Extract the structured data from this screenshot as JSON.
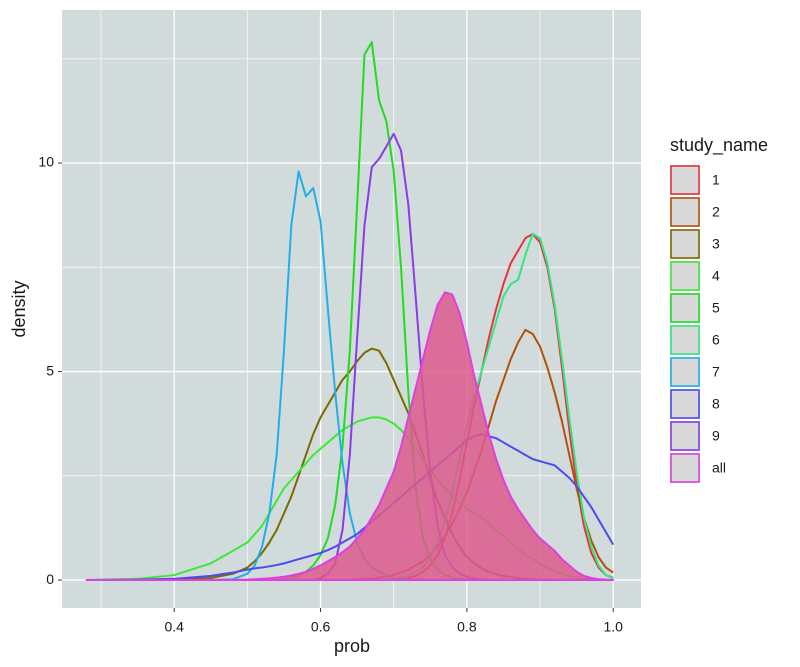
{
  "chart_data": {
    "type": "line",
    "x_label": "prob",
    "y_label": "density",
    "legend_title": "study_name",
    "legend_position": "right",
    "grid": true,
    "background": "#d2dbdb",
    "xlim": [
      0.2466,
      1.038
    ],
    "ylim": [
      -0.67,
      13.67
    ],
    "xticks": [
      0.4,
      0.6,
      0.8,
      {
        "value": 1,
        "label": "1.0"
      }
    ],
    "yticks": [
      0,
      5,
      10
    ],
    "minor_xticks": [
      0.3,
      0.5,
      0.7,
      0.9
    ],
    "minor_yticks": [
      2.5,
      7.5,
      12.5
    ],
    "x": [
      0.28,
      0.35,
      0.4,
      0.45,
      0.48,
      0.5,
      0.51,
      0.52,
      0.53,
      0.54,
      0.55,
      0.56,
      0.57,
      0.58,
      0.59,
      0.6,
      0.61,
      0.62,
      0.63,
      0.64,
      0.65,
      0.66,
      0.67,
      0.68,
      0.69,
      0.7,
      0.71,
      0.72,
      0.73,
      0.74,
      0.75,
      0.76,
      0.77,
      0.78,
      0.79,
      0.8,
      0.81,
      0.82,
      0.83,
      0.84,
      0.85,
      0.86,
      0.87,
      0.88,
      0.89,
      0.9,
      0.91,
      0.92,
      0.93,
      0.94,
      0.95,
      0.96,
      0.97,
      0.98,
      0.99,
      1.0
    ],
    "series": [
      {
        "name": "1",
        "color": "#e8323c",
        "values": [
          0,
          0,
          0,
          0,
          0,
          0,
          0,
          0,
          0,
          0,
          0,
          0,
          0,
          0,
          0,
          0,
          0,
          0,
          0,
          0,
          0,
          0,
          0,
          0,
          0,
          0,
          0,
          0.05,
          0.1,
          0.2,
          0.35,
          0.6,
          1.0,
          1.6,
          2.4,
          3.3,
          4.2,
          5.0,
          5.8,
          6.5,
          7.1,
          7.6,
          7.9,
          8.2,
          8.3,
          8.1,
          7.5,
          6.5,
          5.1,
          3.6,
          2.3,
          1.3,
          0.65,
          0.3,
          0.12,
          0.05
        ]
      },
      {
        "name": "2",
        "color": "#b4500a",
        "values": [
          0,
          0,
          0,
          0,
          0,
          0,
          0,
          0,
          0,
          0,
          0,
          0,
          0,
          0,
          0,
          0,
          0,
          0,
          0,
          0,
          0.02,
          0.03,
          0.04,
          0.06,
          0.08,
          0.12,
          0.18,
          0.25,
          0.35,
          0.45,
          0.6,
          0.8,
          1.05,
          1.35,
          1.7,
          2.1,
          2.6,
          3.1,
          3.7,
          4.3,
          4.8,
          5.3,
          5.7,
          6.0,
          5.9,
          5.6,
          5.1,
          4.5,
          3.8,
          3.0,
          2.2,
          1.5,
          0.95,
          0.55,
          0.3,
          0.18
        ]
      },
      {
        "name": "3",
        "color": "#7a6a00",
        "values": [
          0,
          0,
          0.01,
          0.05,
          0.15,
          0.3,
          0.45,
          0.65,
          0.9,
          1.2,
          1.6,
          2.0,
          2.5,
          3.0,
          3.5,
          3.9,
          4.2,
          4.5,
          4.8,
          5.0,
          5.25,
          5.45,
          5.55,
          5.5,
          5.2,
          4.8,
          4.4,
          4.0,
          3.5,
          3.0,
          2.4,
          1.9,
          1.5,
          1.1,
          0.8,
          0.55,
          0.4,
          0.28,
          0.2,
          0.14,
          0.1,
          0.07,
          0.05,
          0.03,
          0.02,
          0.01,
          0,
          0,
          0,
          0,
          0,
          0,
          0,
          0,
          0,
          0
        ]
      },
      {
        "name": "4",
        "color": "#3ee83a",
        "values": [
          0,
          0.03,
          0.12,
          0.4,
          0.7,
          0.9,
          1.1,
          1.3,
          1.6,
          1.9,
          2.2,
          2.4,
          2.6,
          2.8,
          3.0,
          3.15,
          3.3,
          3.45,
          3.6,
          3.7,
          3.8,
          3.85,
          3.9,
          3.9,
          3.85,
          3.75,
          3.6,
          3.4,
          3.15,
          2.9,
          2.65,
          2.4,
          2.2,
          2.0,
          1.85,
          1.7,
          1.6,
          1.5,
          1.35,
          1.2,
          1.05,
          0.9,
          0.75,
          0.6,
          0.5,
          0.4,
          0.3,
          0.22,
          0.15,
          0.1,
          0.06,
          0.03,
          0.02,
          0.01,
          0,
          0
        ]
      },
      {
        "name": "5",
        "color": "#1fdc1f",
        "values": [
          0,
          0,
          0,
          0,
          0,
          0,
          0,
          0,
          0,
          0,
          0.02,
          0.05,
          0.1,
          0.2,
          0.35,
          0.6,
          1.0,
          1.8,
          3.2,
          5.5,
          9.0,
          12.6,
          12.9,
          11.5,
          11.0,
          9.8,
          7.5,
          4.5,
          2.2,
          1.0,
          0.5,
          0.25,
          0.12,
          0.06,
          0.03,
          0.01,
          0,
          0,
          0,
          0,
          0,
          0,
          0,
          0,
          0,
          0,
          0,
          0,
          0,
          0,
          0,
          0,
          0,
          0,
          0,
          0
        ]
      },
      {
        "name": "6",
        "color": "#2ee882",
        "values": [
          0,
          0,
          0,
          0,
          0,
          0,
          0,
          0,
          0,
          0,
          0,
          0,
          0,
          0,
          0,
          0,
          0,
          0,
          0,
          0,
          0,
          0,
          0,
          0,
          0,
          0.02,
          0.05,
          0.1,
          0.2,
          0.3,
          0.55,
          0.9,
          1.4,
          2.1,
          2.9,
          3.7,
          4.4,
          5.0,
          5.6,
          6.2,
          6.8,
          7.1,
          7.2,
          7.8,
          8.3,
          8.2,
          7.6,
          6.6,
          5.3,
          3.9,
          2.6,
          1.5,
          0.8,
          0.35,
          0.12,
          0.04
        ]
      },
      {
        "name": "7",
        "color": "#22aee8",
        "values": [
          0,
          0,
          0,
          0,
          0.02,
          0.15,
          0.35,
          0.8,
          1.6,
          3.0,
          5.5,
          8.5,
          9.8,
          9.2,
          9.4,
          8.6,
          6.5,
          4.5,
          2.8,
          1.6,
          0.9,
          0.5,
          0.3,
          0.2,
          0.12,
          0.05,
          0.03,
          0.02,
          0.01,
          0,
          0,
          0,
          0,
          0,
          0,
          0,
          0,
          0,
          0,
          0,
          0,
          0,
          0,
          0,
          0,
          0,
          0,
          0,
          0,
          0,
          0,
          0,
          0,
          0,
          0,
          0
        ]
      },
      {
        "name": "8",
        "color": "#4a4cee",
        "values": [
          0,
          0.01,
          0.03,
          0.1,
          0.18,
          0.25,
          0.28,
          0.3,
          0.33,
          0.36,
          0.4,
          0.45,
          0.5,
          0.55,
          0.6,
          0.65,
          0.72,
          0.8,
          0.9,
          1.0,
          1.1,
          1.25,
          1.4,
          1.55,
          1.7,
          1.85,
          2.0,
          2.15,
          2.3,
          2.45,
          2.6,
          2.75,
          2.9,
          3.05,
          3.2,
          3.35,
          3.45,
          3.5,
          3.45,
          3.4,
          3.3,
          3.2,
          3.1,
          3.0,
          2.9,
          2.85,
          2.8,
          2.75,
          2.6,
          2.45,
          2.25,
          2.0,
          1.75,
          1.45,
          1.15,
          0.85
        ]
      },
      {
        "name": "9",
        "color": "#8a3ae8",
        "values": [
          0,
          0,
          0,
          0,
          0,
          0,
          0,
          0,
          0,
          0,
          0,
          0,
          0,
          0,
          0,
          0.05,
          0.15,
          0.4,
          1.2,
          3.0,
          5.8,
          8.5,
          9.9,
          10.1,
          10.4,
          10.7,
          10.3,
          9.0,
          6.8,
          4.5,
          2.6,
          1.3,
          0.6,
          0.3,
          0.15,
          0.08,
          0.04,
          0.02,
          0,
          0,
          0,
          0,
          0,
          0,
          0,
          0,
          0,
          0,
          0,
          0,
          0,
          0,
          0,
          0,
          0,
          0
        ]
      },
      {
        "name": "all",
        "color": "#e03ee0",
        "fill": "#dc5a8c",
        "values": [
          0,
          0,
          0,
          0,
          0,
          0.01,
          0.02,
          0.03,
          0.04,
          0.06,
          0.08,
          0.11,
          0.15,
          0.2,
          0.27,
          0.35,
          0.45,
          0.55,
          0.67,
          0.8,
          1.0,
          1.2,
          1.5,
          1.8,
          2.2,
          2.6,
          3.2,
          3.9,
          4.6,
          5.3,
          6.0,
          6.6,
          6.9,
          6.85,
          6.4,
          5.7,
          4.9,
          4.2,
          3.5,
          2.9,
          2.4,
          2.0,
          1.7,
          1.45,
          1.2,
          1.0,
          0.85,
          0.7,
          0.5,
          0.35,
          0.2,
          0.1,
          0.05,
          0.02,
          0.01,
          0
        ]
      }
    ]
  }
}
